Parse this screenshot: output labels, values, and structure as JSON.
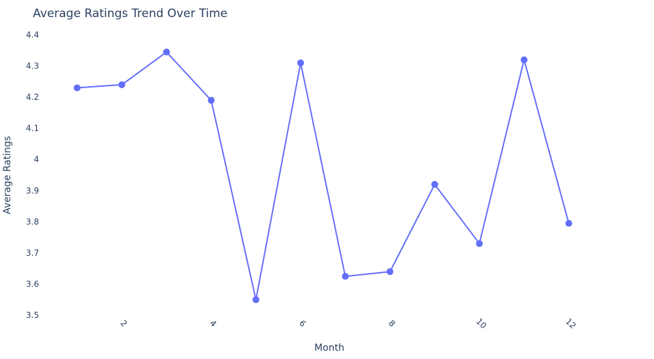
{
  "chart_data": {
    "type": "line",
    "title": "Average Ratings Trend Over Time",
    "xlabel": "Month",
    "ylabel": "Average Ratings",
    "x": [
      1,
      2,
      3,
      4,
      5,
      6,
      7,
      8,
      9,
      10,
      11,
      12
    ],
    "values": [
      4.23,
      4.24,
      4.345,
      4.19,
      3.55,
      4.31,
      3.625,
      3.64,
      3.92,
      3.73,
      4.32,
      3.795
    ],
    "x_ticks": [
      "2",
      "4",
      "6",
      "8",
      "10",
      "12"
    ],
    "x_tick_values": [
      2,
      4,
      6,
      8,
      10,
      12
    ],
    "y_ticks": [
      "3.5",
      "3.6",
      "3.7",
      "3.8",
      "3.9",
      "4",
      "4.1",
      "4.2",
      "4.3",
      "4.4"
    ],
    "y_tick_values": [
      3.5,
      3.6,
      3.7,
      3.8,
      3.9,
      4.0,
      4.1,
      4.2,
      4.3,
      4.4
    ],
    "xlim": [
      0.5,
      13.6
    ],
    "ylim": [
      3.5,
      4.4
    ],
    "grid": false,
    "line_color": "#636efa",
    "text_color": "#2a3f5f"
  }
}
